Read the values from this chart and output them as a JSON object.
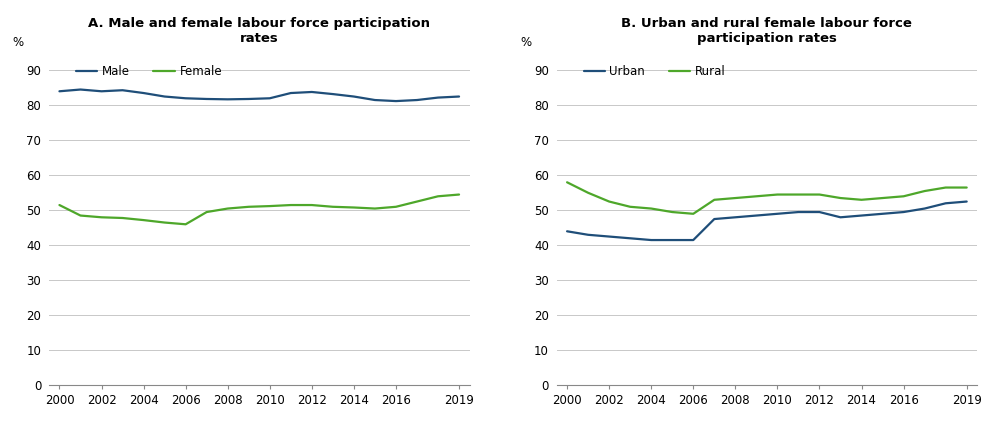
{
  "years": [
    2000,
    2001,
    2002,
    2003,
    2004,
    2005,
    2006,
    2007,
    2008,
    2009,
    2010,
    2011,
    2012,
    2013,
    2014,
    2015,
    2016,
    2017,
    2018,
    2019
  ],
  "panel_A": {
    "title": "A. Male and female labour force participation\nrates",
    "male": [
      84.0,
      84.5,
      84.0,
      84.3,
      83.5,
      82.5,
      82.0,
      81.8,
      81.7,
      81.8,
      82.0,
      83.5,
      83.8,
      83.2,
      82.5,
      81.5,
      81.2,
      81.5,
      82.2,
      82.5
    ],
    "female": [
      51.5,
      48.5,
      48.0,
      47.8,
      47.2,
      46.5,
      46.0,
      49.5,
      50.5,
      51.0,
      51.2,
      51.5,
      51.5,
      51.0,
      50.8,
      50.5,
      51.0,
      52.5,
      54.0,
      54.5
    ],
    "legend_labels": [
      "Male",
      "Female"
    ]
  },
  "panel_B": {
    "title": "B. Urban and rural female labour force\nparticipation rates",
    "urban": [
      44.0,
      43.0,
      42.5,
      42.0,
      41.5,
      41.5,
      41.5,
      47.5,
      48.0,
      48.5,
      49.0,
      49.5,
      49.5,
      48.0,
      48.5,
      49.0,
      49.5,
      50.5,
      52.0,
      52.5
    ],
    "rural": [
      58.0,
      55.0,
      52.5,
      51.0,
      50.5,
      49.5,
      49.0,
      53.0,
      53.5,
      54.0,
      54.5,
      54.5,
      54.5,
      53.5,
      53.0,
      53.5,
      54.0,
      55.5,
      56.5,
      56.5
    ],
    "legend_labels": [
      "Urban",
      "Rural"
    ]
  },
  "ylim": [
    0,
    95
  ],
  "yticks": [
    0,
    10,
    20,
    30,
    40,
    50,
    60,
    70,
    80,
    90
  ],
  "xticks": [
    2000,
    2002,
    2004,
    2006,
    2008,
    2010,
    2012,
    2014,
    2016,
    2019
  ],
  "xlim": [
    1999.5,
    2019.5
  ],
  "ylabel": "%",
  "line_color_blue": "#1F4E79",
  "line_color_green": "#4EA72A",
  "grid_color": "#C8C8C8",
  "bg_color": "#FFFFFF",
  "title_fontsize": 9.5,
  "tick_fontsize": 8.5,
  "legend_fontsize": 8.5,
  "linewidth": 1.6
}
